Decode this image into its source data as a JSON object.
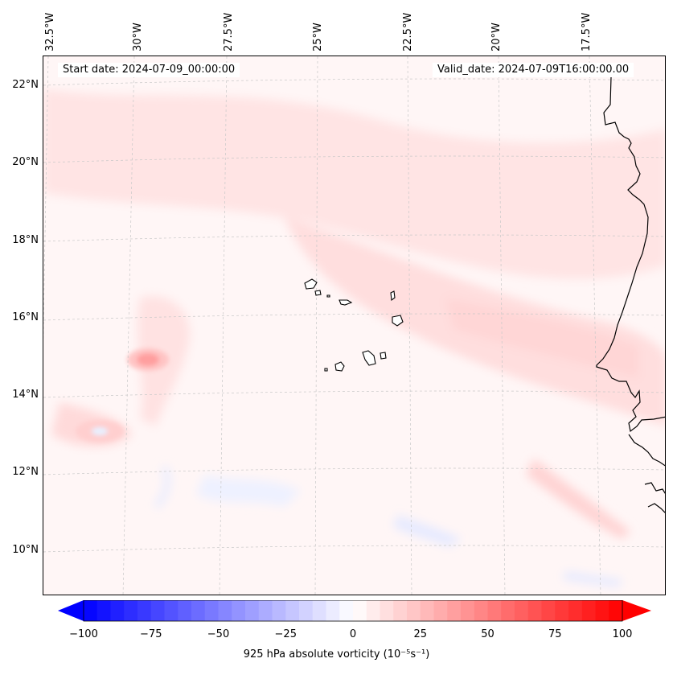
{
  "map": {
    "start_date": "Start date: 2024-07-09_00:00:00",
    "valid_date": "Valid_date: 2024-07-09T16:00:00.00",
    "lon_labels": [
      "32.5°W",
      "30°W",
      "27.5°W",
      "25°W",
      "22.5°W",
      "20°W",
      "17.5°W"
    ],
    "lat_labels": [
      "22°N",
      "20°N",
      "18°N",
      "16°N",
      "14°N",
      "12°N",
      "10°N"
    ]
  },
  "colorbar": {
    "min": -100,
    "max": 100,
    "ticks": [
      "−100",
      "−75",
      "−50",
      "−25",
      "0",
      "25",
      "50",
      "75",
      "100"
    ],
    "label": "925 hPa absolute vorticity (10⁻⁵s⁻¹)",
    "negative_color": "#0000ff",
    "positive_color": "#ff0000"
  },
  "features": {
    "vorticity_maximum_value_approx": 30
  }
}
